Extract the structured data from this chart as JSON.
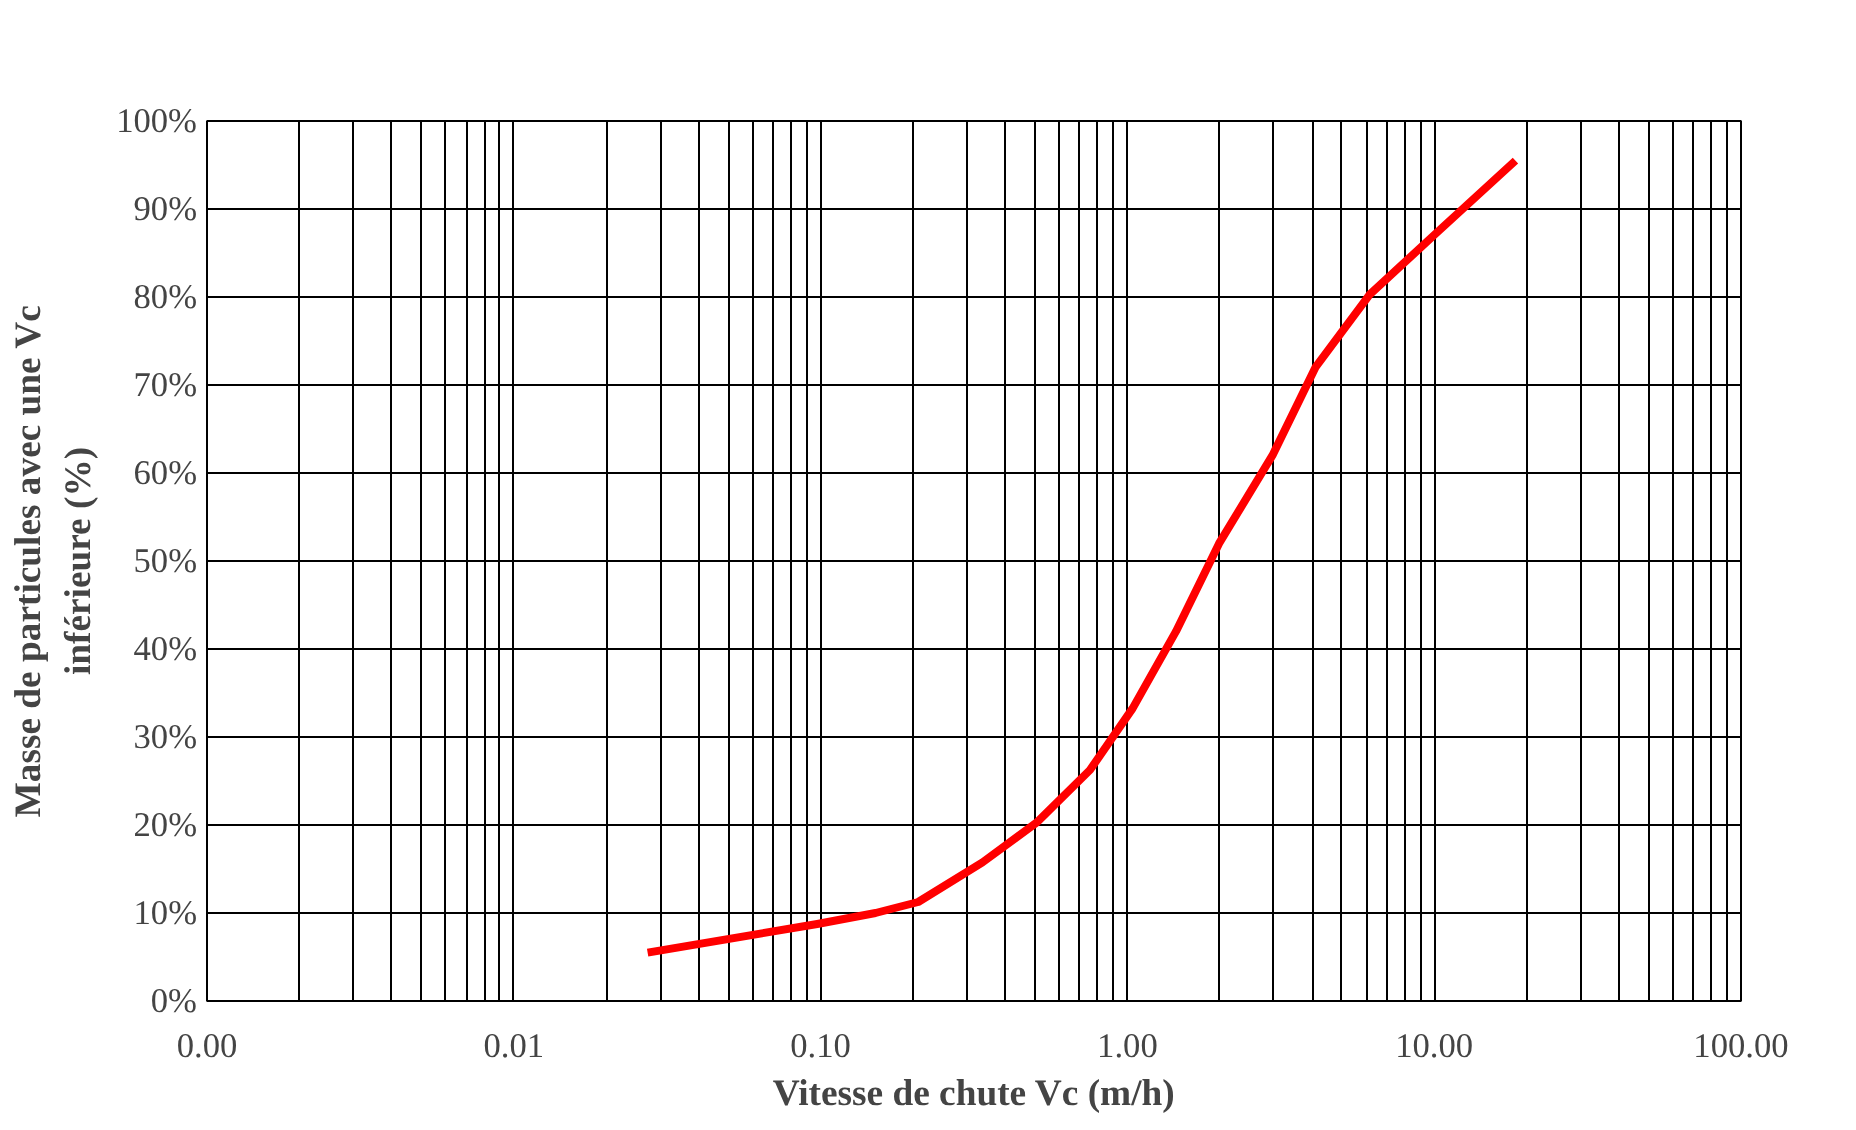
{
  "chart_data": {
    "type": "line",
    "xlabel": "Vitesse de chute Vc (m/h)",
    "ylabel": "Masse de particules avec une Vc\ninférieure (%)",
    "log": "x",
    "grid": true,
    "marker": "none",
    "line_style": "solid",
    "xlim": [
      0.001,
      100
    ],
    "xticks": [
      {
        "value": 0.001,
        "label": "0.00"
      },
      {
        "value": 0.01,
        "label": "0.01"
      },
      {
        "value": 0.1,
        "label": "0.10"
      },
      {
        "value": 1,
        "label": "1.00"
      },
      {
        "value": 10,
        "label": "10.00"
      },
      {
        "value": 100,
        "label": "100.00"
      }
    ],
    "ylim": [
      0,
      100
    ],
    "yticks": [
      {
        "value": 0,
        "label": "0%"
      },
      {
        "value": 10,
        "label": "10%"
      },
      {
        "value": 20,
        "label": "20%"
      },
      {
        "value": 30,
        "label": "30%"
      },
      {
        "value": 40,
        "label": "40%"
      },
      {
        "value": 50,
        "label": "50%"
      },
      {
        "value": 60,
        "label": "60%"
      },
      {
        "value": 70,
        "label": "70%"
      },
      {
        "value": 80,
        "label": "80%"
      },
      {
        "value": 90,
        "label": "90%"
      },
      {
        "value": 100,
        "label": "100%"
      }
    ],
    "x": [
      0.0273,
      0.0975,
      0.151,
      0.208,
      0.337,
      0.505,
      0.755,
      1.04,
      1.44,
      1.99,
      2.97,
      4.1,
      6.15,
      9.97,
      18.4
    ],
    "series": [
      {
        "color": "#ff0000",
        "values": [
          5.5,
          8.75,
          10,
          11.25,
          15.75,
          20.25,
          26.25,
          33.25,
          42,
          52,
          62,
          72,
          80.25,
          87,
          95.5
        ]
      }
    ]
  }
}
